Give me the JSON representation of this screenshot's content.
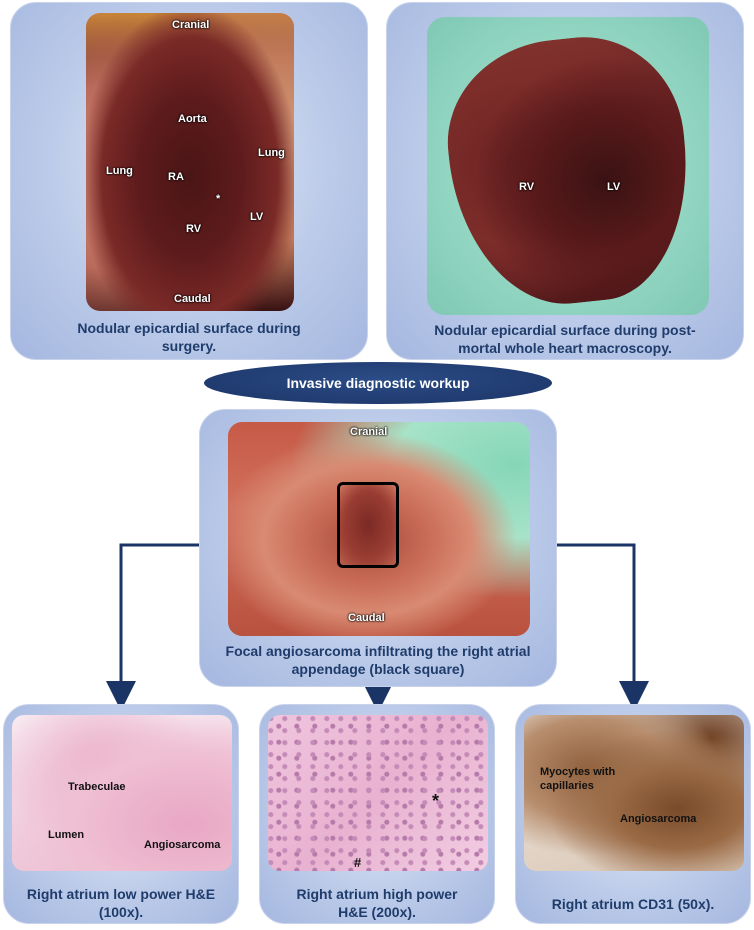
{
  "panels": {
    "surgery": {
      "caption": "Nodular epicardial surface during surgery.",
      "labels": {
        "cranial": "Cranial",
        "aorta": "Aorta",
        "lung_left": "Lung",
        "lung_right": "Lung",
        "ra": "RA",
        "asterisk": "*",
        "rv": "RV",
        "lv": "LV",
        "caudal": "Caudal"
      }
    },
    "postmortem": {
      "caption": "Nodular epicardial surface during post-mortal whole heart macroscopy.",
      "labels": {
        "rv": "RV",
        "lv": "LV"
      }
    },
    "workup": {
      "title": "Invasive diagnostic workup"
    },
    "appendage": {
      "caption": "Focal angiosarcoma infiltrating the right atrial appendage (black square)",
      "labels": {
        "cranial": "Cranial",
        "caudal": "Caudal"
      }
    },
    "low_power": {
      "caption": "Right atrium low power H&E (100x).",
      "labels": {
        "trabeculae": "Trabeculae",
        "lumen": "Lumen",
        "angiosarcoma": "Angiosarcoma"
      }
    },
    "high_power": {
      "caption": "Right atrium high power H&E (200x).",
      "labels": {
        "asterisk": "*",
        "hash": "#"
      }
    },
    "cd31": {
      "caption": "Right atrium CD31 (50x).",
      "labels": {
        "myocytes": "Myocytes with capillaries",
        "angiosarcoma": "Angiosarcoma"
      }
    }
  },
  "colors": {
    "panel": "#bccbe9",
    "caption_text": "#1f3c6b",
    "arrow": "#1b3466",
    "ellipse": "#1b3466"
  }
}
